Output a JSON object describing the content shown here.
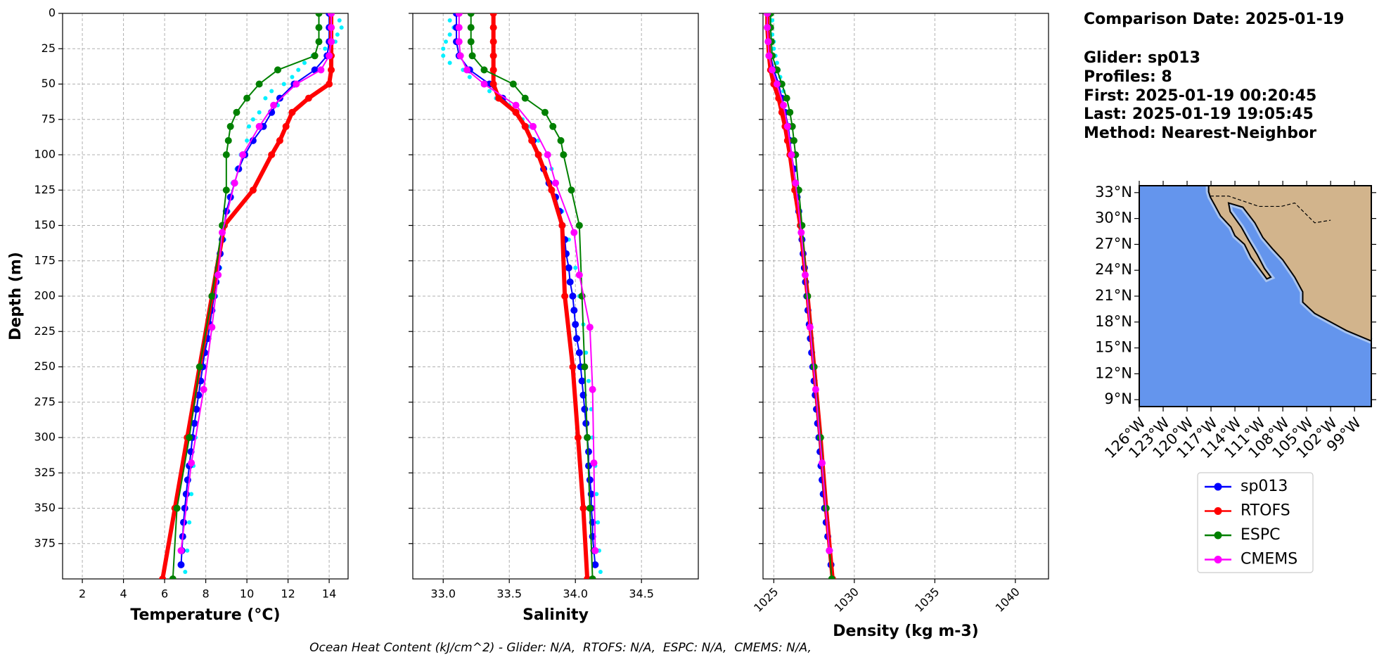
{
  "chart_data": [
    {
      "type": "profile",
      "xlabel": "Temperature (°C)",
      "ylabel": "Depth (m)",
      "xlim": [
        1.04,
        14.92
      ],
      "xticks": [
        2,
        4,
        6,
        8,
        10,
        12,
        14
      ],
      "ylim": [
        400,
        0
      ],
      "yticks": [
        0,
        25,
        50,
        75,
        100,
        125,
        150,
        175,
        200,
        225,
        250,
        275,
        300,
        325,
        350,
        375
      ],
      "grid": true,
      "series": [
        {
          "color": "#00f0ff",
          "line": false,
          "depths": [
            5,
            10,
            15,
            20,
            25,
            30,
            35,
            40,
            45,
            50,
            55,
            60,
            65,
            70,
            75,
            80,
            90,
            100,
            110,
            120,
            140,
            160,
            180,
            200,
            220,
            240,
            260,
            280,
            300,
            320,
            340,
            360,
            380,
            395
          ],
          "values": [
            14.5,
            14.6,
            14.4,
            14.3,
            13.8,
            13.2,
            12.8,
            12.5,
            12.2,
            11.8,
            11.2,
            10.9,
            11.5,
            10.6,
            10.3,
            10.1,
            10.0,
            9.7,
            9.5,
            9.3,
            9.1,
            8.9,
            8.7,
            8.5,
            8.2,
            7.9,
            7.8,
            7.6,
            7.5,
            7.4,
            7.3,
            7.2,
            7.1,
            7.0
          ]
        },
        {
          "name": "sp013",
          "color": "#0000ff",
          "depths": [
            0,
            10,
            20,
            30,
            40,
            50,
            60,
            70,
            80,
            90,
            100,
            110,
            120,
            130,
            140,
            150,
            160,
            170,
            180,
            190,
            200,
            210,
            220,
            230,
            240,
            250,
            260,
            270,
            280,
            290,
            300,
            310,
            320,
            330,
            340,
            350,
            360,
            370,
            380,
            390
          ],
          "values": [
            14.0,
            14.0,
            14.0,
            13.9,
            13.3,
            12.3,
            11.6,
            11.2,
            10.8,
            10.3,
            9.9,
            9.6,
            9.4,
            9.2,
            9.0,
            8.9,
            8.8,
            8.7,
            8.6,
            8.5,
            8.4,
            8.3,
            8.2,
            8.1,
            7.95,
            7.85,
            7.75,
            7.65,
            7.55,
            7.45,
            7.35,
            7.28,
            7.2,
            7.12,
            7.05,
            6.98,
            6.92,
            6.88,
            6.84,
            6.8
          ]
        },
        {
          "name": "RTOFS",
          "color": "#ff0000",
          "depths": [
            0,
            10,
            20,
            30,
            40,
            50,
            60,
            70,
            80,
            90,
            100,
            125,
            150,
            200,
            250,
            300,
            350,
            400
          ],
          "values": [
            14.1,
            14.1,
            14.1,
            14.1,
            14.1,
            14.0,
            13.0,
            12.2,
            11.9,
            11.6,
            11.2,
            10.3,
            8.9,
            8.3,
            7.7,
            7.1,
            6.5,
            5.9
          ]
        },
        {
          "name": "ESPC",
          "color": "#008000",
          "depths": [
            0,
            10,
            20,
            30,
            40,
            50,
            60,
            70,
            80,
            90,
            100,
            125,
            150,
            200,
            250,
            300,
            350,
            400
          ],
          "values": [
            13.5,
            13.5,
            13.5,
            13.3,
            11.5,
            10.6,
            10.0,
            9.5,
            9.2,
            9.1,
            9.0,
            9.0,
            8.8,
            8.3,
            7.7,
            7.2,
            6.6,
            6.4
          ]
        },
        {
          "name": "CMEMS",
          "color": "#ff00ff",
          "depths": [
            0,
            10,
            20,
            30,
            40,
            50,
            65,
            80,
            100,
            120,
            155,
            185,
            222,
            266,
            318,
            380
          ],
          "values": [
            14.1,
            14.1,
            14.1,
            14.0,
            13.6,
            12.4,
            11.3,
            10.6,
            9.8,
            9.4,
            8.8,
            8.6,
            8.3,
            7.9,
            7.3,
            6.8
          ]
        }
      ]
    },
    {
      "type": "profile",
      "xlabel": "Salinity",
      "xlim": [
        32.77,
        34.93
      ],
      "xticks": [
        {
          "value": 33,
          "label": "33.0"
        },
        33.5,
        {
          "value": 34,
          "label": "34.0"
        },
        34.5
      ],
      "ylim": [
        400,
        0
      ],
      "yticks": [
        0,
        25,
        50,
        75,
        100,
        125,
        150,
        175,
        200,
        225,
        250,
        275,
        300,
        325,
        350,
        375
      ],
      "ytick_labels": false,
      "grid": true,
      "series": [
        {
          "color": "#00f0ff",
          "line": false,
          "depths": [
            5,
            10,
            15,
            20,
            25,
            30,
            35,
            40,
            45,
            50,
            55,
            60,
            65,
            70,
            75,
            80,
            90,
            100,
            110,
            120,
            140,
            160,
            180,
            200,
            220,
            240,
            260,
            280,
            300,
            320,
            340,
            360,
            380,
            395
          ],
          "values": [
            33.05,
            33.08,
            33.05,
            33.02,
            33.0,
            33.0,
            33.05,
            33.15,
            33.2,
            33.3,
            33.35,
            33.4,
            33.5,
            33.55,
            33.6,
            33.65,
            33.72,
            33.78,
            33.82,
            33.86,
            33.9,
            33.95,
            34.0,
            34.03,
            34.06,
            34.08,
            34.1,
            34.12,
            34.13,
            34.15,
            34.16,
            34.17,
            34.18,
            34.19
          ]
        },
        {
          "color": "#0000ff",
          "depths": [
            0,
            10,
            20,
            30,
            40,
            50,
            60,
            70,
            80,
            90,
            100,
            110,
            120,
            130,
            140,
            150,
            160,
            170,
            180,
            190,
            200,
            210,
            220,
            230,
            240,
            250,
            260,
            270,
            280,
            290,
            300,
            310,
            320,
            330,
            340,
            350,
            360,
            370,
            380,
            390
          ],
          "values": [
            33.1,
            33.1,
            33.1,
            33.12,
            33.2,
            33.35,
            33.45,
            33.55,
            33.62,
            33.68,
            33.72,
            33.76,
            33.8,
            33.85,
            33.88,
            33.9,
            33.92,
            33.93,
            33.95,
            33.96,
            33.98,
            33.99,
            34.0,
            34.01,
            34.03,
            34.04,
            34.05,
            34.06,
            34.07,
            34.08,
            34.09,
            34.1,
            34.1,
            34.11,
            34.12,
            34.12,
            34.13,
            34.13,
            34.14,
            34.15
          ]
        },
        {
          "color": "#ff0000",
          "depths": [
            0,
            10,
            20,
            30,
            40,
            50,
            60,
            70,
            80,
            90,
            100,
            125,
            150,
            200,
            250,
            300,
            350,
            400
          ],
          "values": [
            33.38,
            33.38,
            33.38,
            33.38,
            33.38,
            33.38,
            33.42,
            33.55,
            33.62,
            33.67,
            33.72,
            33.82,
            33.9,
            33.92,
            33.98,
            34.02,
            34.06,
            34.09
          ]
        },
        {
          "color": "#008000",
          "depths": [
            0,
            10,
            20,
            30,
            40,
            50,
            60,
            70,
            80,
            90,
            100,
            125,
            150,
            200,
            250,
            300,
            350,
            400
          ],
          "values": [
            33.21,
            33.21,
            33.21,
            33.22,
            33.31,
            33.53,
            33.62,
            33.77,
            33.83,
            33.89,
            33.91,
            33.97,
            34.03,
            34.05,
            34.07,
            34.09,
            34.11,
            34.13
          ]
        },
        {
          "color": "#ff00ff",
          "depths": [
            0,
            10,
            20,
            30,
            40,
            50,
            65,
            80,
            100,
            120,
            155,
            185,
            222,
            266,
            318,
            380
          ],
          "values": [
            33.12,
            33.12,
            33.12,
            33.13,
            33.18,
            33.31,
            33.55,
            33.68,
            33.79,
            33.85,
            33.99,
            34.03,
            34.11,
            34.13,
            34.14,
            34.15
          ]
        }
      ]
    },
    {
      "type": "profile",
      "xlabel": "Density (kg m-3)",
      "xlim": [
        1024.33,
        1042.06
      ],
      "xticks": [
        1025,
        1030,
        1035,
        1040
      ],
      "xtick_rotation": 45,
      "ylim": [
        400,
        0
      ],
      "yticks": [
        0,
        25,
        50,
        75,
        100,
        125,
        150,
        175,
        200,
        225,
        250,
        275,
        300,
        325,
        350,
        375
      ],
      "ytick_labels": false,
      "grid": true,
      "series": [
        {
          "color": "#00f0ff",
          "line": false,
          "depths": [
            5,
            10,
            15,
            20,
            25,
            30,
            35,
            40,
            45,
            50,
            55,
            60
          ],
          "values": [
            1024.9,
            1024.8,
            1024.9,
            1025.0,
            1025.0,
            1025.1,
            1025.2,
            1025.3,
            1025.4,
            1025.5,
            1025.6,
            1025.7
          ]
        },
        {
          "color": "#0000ff",
          "depths": [
            0,
            10,
            20,
            30,
            40,
            50,
            60,
            70,
            80,
            90,
            100,
            110,
            120,
            130,
            140,
            150,
            160,
            170,
            180,
            190,
            200,
            210,
            220,
            230,
            240,
            250,
            260,
            270,
            280,
            290,
            300,
            310,
            320,
            330,
            340,
            350,
            360,
            370,
            380,
            390
          ],
          "values": [
            1024.7,
            1024.7,
            1024.75,
            1024.8,
            1025.0,
            1025.3,
            1025.5,
            1025.7,
            1025.9,
            1026.0,
            1026.1,
            1026.25,
            1026.35,
            1026.45,
            1026.55,
            1026.65,
            1026.75,
            1026.82,
            1026.9,
            1026.97,
            1027.05,
            1027.12,
            1027.2,
            1027.27,
            1027.35,
            1027.42,
            1027.5,
            1027.57,
            1027.65,
            1027.72,
            1027.8,
            1027.87,
            1027.93,
            1028.0,
            1028.07,
            1028.15,
            1028.25,
            1028.35,
            1028.45,
            1028.55
          ]
        },
        {
          "color": "#ff0000",
          "depths": [
            0,
            10,
            20,
            30,
            40,
            50,
            60,
            70,
            80,
            90,
            100,
            125,
            150,
            200,
            250,
            300,
            350,
            400
          ],
          "values": [
            1024.6,
            1024.6,
            1024.65,
            1024.7,
            1024.8,
            1025.0,
            1025.3,
            1025.5,
            1025.7,
            1025.85,
            1026.0,
            1026.3,
            1026.65,
            1027.1,
            1027.5,
            1027.9,
            1028.25,
            1028.65
          ]
        },
        {
          "color": "#008000",
          "depths": [
            0,
            10,
            20,
            30,
            40,
            50,
            60,
            70,
            80,
            90,
            100,
            125,
            150,
            200,
            250,
            300,
            350,
            400
          ],
          "values": [
            1024.8,
            1024.8,
            1024.85,
            1024.9,
            1025.2,
            1025.5,
            1025.8,
            1026.0,
            1026.15,
            1026.25,
            1026.35,
            1026.55,
            1026.75,
            1027.1,
            1027.5,
            1027.9,
            1028.25,
            1028.6
          ]
        },
        {
          "color": "#ff00ff",
          "depths": [
            0,
            10,
            20,
            30,
            40,
            50,
            65,
            80,
            100,
            120,
            155,
            185,
            222,
            266,
            318,
            380
          ],
          "values": [
            1024.6,
            1024.6,
            1024.65,
            1024.7,
            1024.9,
            1025.2,
            1025.6,
            1025.85,
            1026.1,
            1026.35,
            1026.7,
            1026.95,
            1027.25,
            1027.6,
            1028.0,
            1028.45
          ]
        }
      ]
    }
  ],
  "info": [
    "Comparison Date: 2025-01-19",
    "Glider: sp013",
    "Profiles: 8",
    "First: 2025-01-19 00:20:45",
    "Last: 2025-01-19 19:05:45",
    "Method: Nearest-Neighbor"
  ],
  "map": {
    "lat_labels": [
      "33°N",
      "30°N",
      "27°N",
      "24°N",
      "21°N",
      "18°N",
      "15°N",
      "12°N",
      "9°N"
    ],
    "lon_labels": [
      "126°W",
      "123°W",
      "120°W",
      "117°W",
      "114°W",
      "111°W",
      "108°W",
      "105°W",
      "102°W",
      "99°W"
    ]
  },
  "footer": "Ocean Heat Content (kJ/cm^2) - Glider: N/A,  RTOFS: N/A,  ESPC: N/A,  CMEMS: N/A,"
}
